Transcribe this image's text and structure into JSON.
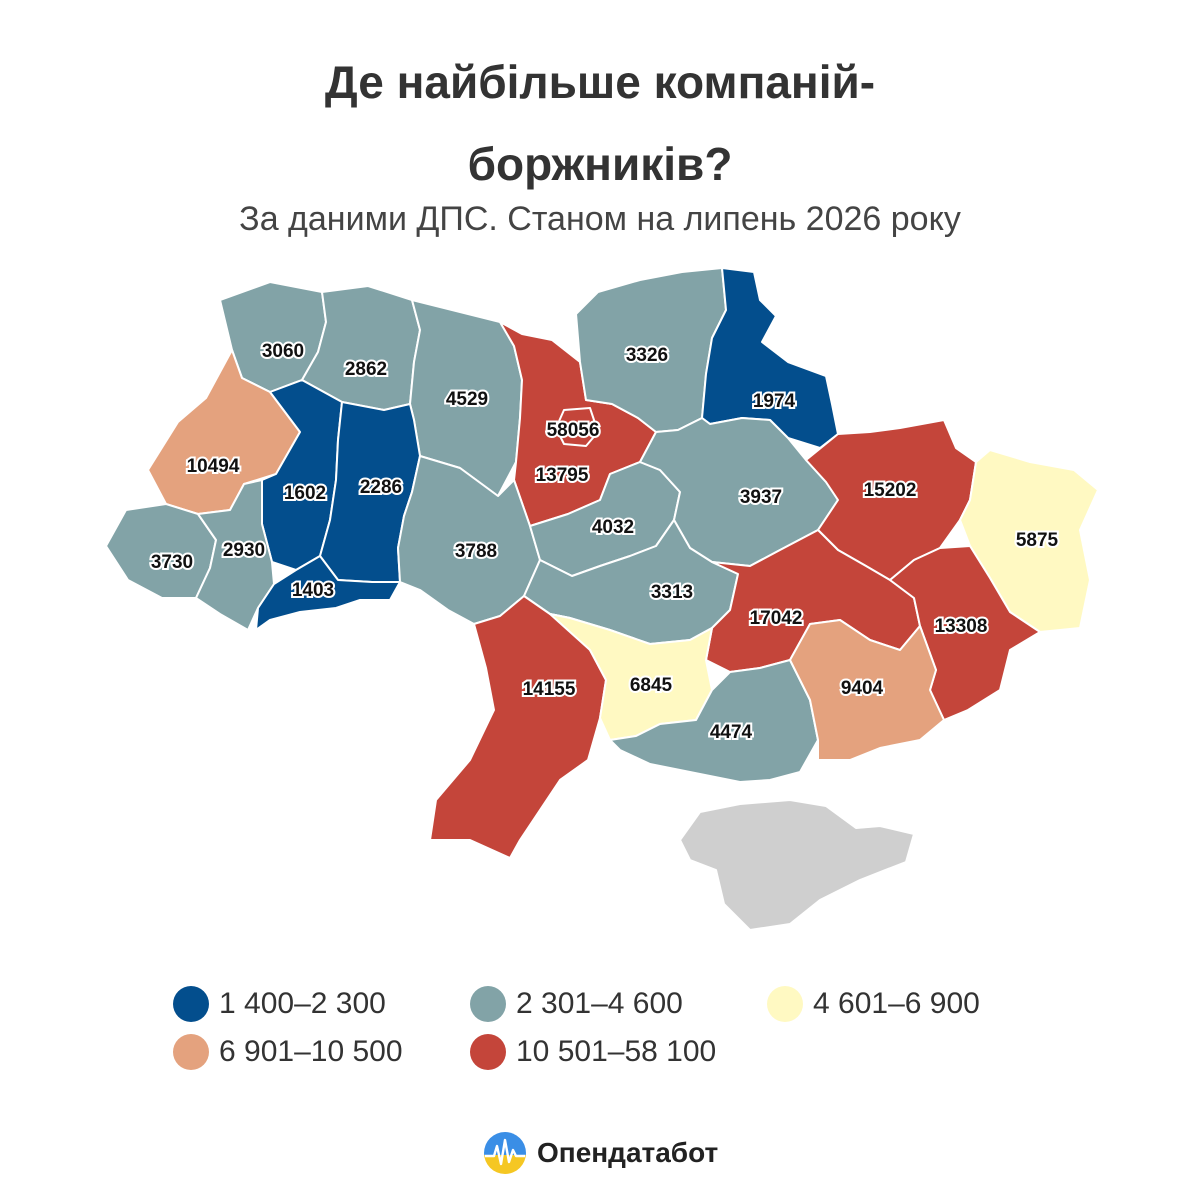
{
  "title_line1": "Де найбільше компаній-",
  "title_line2": "боржників?",
  "subtitle": "За даними ДПС. Станом на липень 2026 року",
  "colors": {
    "dark_blue": "#034e8d",
    "grey_teal": "#82a3a7",
    "light_yellow": "#fff9c2",
    "salmon": "#e4a27e",
    "red": "#c4453a",
    "occupied_grey": "#cfcfcf"
  },
  "map_data": {
    "type": "choropleth",
    "regions": [
      {
        "id": "volyn",
        "value": "3060",
        "bucket": "grey_teal"
      },
      {
        "id": "rivne",
        "value": "2862",
        "bucket": "grey_teal"
      },
      {
        "id": "zhytomyr",
        "value": "4529",
        "bucket": "grey_teal"
      },
      {
        "id": "kyiv",
        "value": "58056",
        "bucket": "red"
      },
      {
        "id": "kyiv-oblast",
        "value": "13795",
        "bucket": "red"
      },
      {
        "id": "chernihiv",
        "value": "3326",
        "bucket": "grey_teal"
      },
      {
        "id": "sumy",
        "value": "1974",
        "bucket": "dark_blue"
      },
      {
        "id": "lviv",
        "value": "10494",
        "bucket": "salmon"
      },
      {
        "id": "ternopil",
        "value": "1602",
        "bucket": "dark_blue"
      },
      {
        "id": "khmelnytskyi",
        "value": "2286",
        "bucket": "dark_blue"
      },
      {
        "id": "zakarpattia",
        "value": "3730",
        "bucket": "grey_teal"
      },
      {
        "id": "ivano-frankivsk",
        "value": "2930",
        "bucket": "grey_teal"
      },
      {
        "id": "chernivtsi",
        "value": "1403",
        "bucket": "dark_blue"
      },
      {
        "id": "vinnytsia",
        "value": "3788",
        "bucket": "grey_teal"
      },
      {
        "id": "cherkasy",
        "value": "4032",
        "bucket": "grey_teal"
      },
      {
        "id": "poltava",
        "value": "3937",
        "bucket": "grey_teal"
      },
      {
        "id": "kharkiv",
        "value": "15202",
        "bucket": "red"
      },
      {
        "id": "luhansk",
        "value": "5875",
        "bucket": "light_yellow"
      },
      {
        "id": "kirovohrad",
        "value": "3313",
        "bucket": "grey_teal"
      },
      {
        "id": "dnipro",
        "value": "17042",
        "bucket": "red"
      },
      {
        "id": "donetsk",
        "value": "13308",
        "bucket": "red"
      },
      {
        "id": "odesa",
        "value": "14155",
        "bucket": "red"
      },
      {
        "id": "mykolaiv",
        "value": "6845",
        "bucket": "light_yellow"
      },
      {
        "id": "kherson",
        "value": "4474",
        "bucket": "grey_teal"
      },
      {
        "id": "zaporizhzhia",
        "value": "9404",
        "bucket": "salmon"
      },
      {
        "id": "crimea",
        "value": "",
        "bucket": "occupied_grey"
      }
    ]
  },
  "legend": [
    {
      "label": "1 400–2 300",
      "bucket": "dark_blue"
    },
    {
      "label": "2 301–4 600",
      "bucket": "grey_teal"
    },
    {
      "label": "4 601–6 900",
      "bucket": "light_yellow"
    },
    {
      "label": "6 901–10 500",
      "bucket": "salmon"
    },
    {
      "label": "10 501–58 100",
      "bucket": "red"
    }
  ],
  "brand": {
    "name": "Опендатабот",
    "logo_icon": "opendatabot-logo-icon"
  }
}
